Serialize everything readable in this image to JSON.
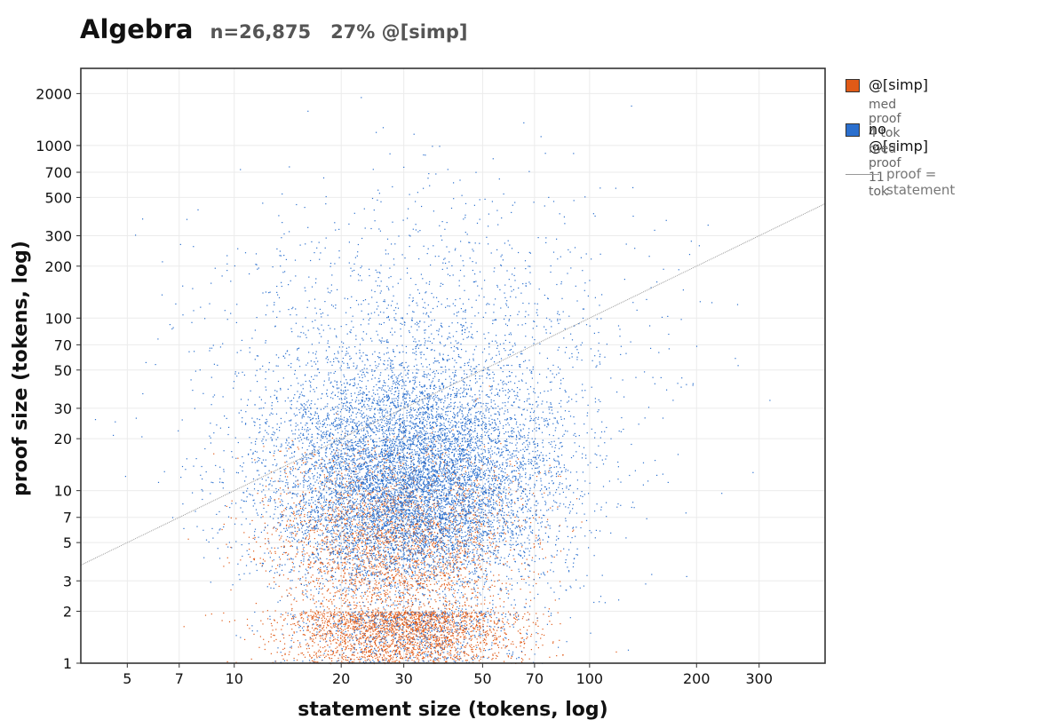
{
  "header": {
    "title": "Algebra",
    "subtitle": "n=26,875   27% @[simp]"
  },
  "legend": {
    "items": [
      {
        "label": "@[simp]",
        "sub": "med proof 4 tok",
        "color": "#e05a17"
      },
      {
        "label": "no @[simp]",
        "sub": "med proof 11 tok",
        "color": "#2a6fce"
      }
    ],
    "line_label": "proof = statement"
  },
  "chart_data": {
    "type": "scatter",
    "xlabel": "statement size (tokens, log)",
    "ylabel": "proof size (tokens, log)",
    "xscale": "log",
    "yscale": "log",
    "xlim": [
      3.7,
      460
    ],
    "ylim": [
      1,
      2800
    ],
    "xticks": [
      5,
      7,
      10,
      20,
      30,
      50,
      70,
      100,
      200,
      300
    ],
    "xtick_labels": [
      "5",
      "7",
      "10",
      "20",
      "30",
      "50",
      "70",
      "100",
      "200",
      "300"
    ],
    "yticks": [
      1,
      2,
      3,
      5,
      7,
      10,
      20,
      30,
      50,
      70,
      100,
      200,
      300,
      500,
      700,
      1000,
      2000
    ],
    "ytick_labels": [
      "1",
      "2",
      "3",
      "5",
      "7",
      "10",
      "20",
      "30",
      "50",
      "70",
      "100",
      "200",
      "300",
      "500",
      "700",
      "1000",
      "2000"
    ],
    "grid": true,
    "legend_position": "outside-right",
    "reference_line": {
      "label": "proof = statement",
      "slope": 1,
      "color": "#999999"
    },
    "series": [
      {
        "name": "@[simp]",
        "color": "#e05a17",
        "median_proof_tokens": 4,
        "share": 0.27,
        "clusters": [
          {
            "x_center": 30,
            "x_spread": 0.16,
            "y_center": 1.5,
            "y_spread": 0.09,
            "count": 2200
          },
          {
            "x_center": 28,
            "x_spread": 0.17,
            "y_center": 4,
            "y_spread": 0.25,
            "count": 2200
          },
          {
            "x_center": 28,
            "x_spread": 0.18,
            "y_center": 8,
            "y_spread": 0.2,
            "count": 800
          }
        ]
      },
      {
        "name": "no @[simp]",
        "color": "#2a6fce",
        "median_proof_tokens": 11,
        "share": 0.73,
        "clusters": [
          {
            "x_center": 31,
            "x_spread": 0.2,
            "y_center": 11,
            "y_spread": 0.33,
            "count": 9000
          },
          {
            "x_center": 35,
            "x_spread": 0.3,
            "y_center": 60,
            "y_spread": 0.5,
            "count": 1800
          },
          {
            "x_center": 30,
            "x_spread": 0.17,
            "y_center": 1.5,
            "y_spread": 0.09,
            "count": 600
          }
        ]
      }
    ]
  }
}
